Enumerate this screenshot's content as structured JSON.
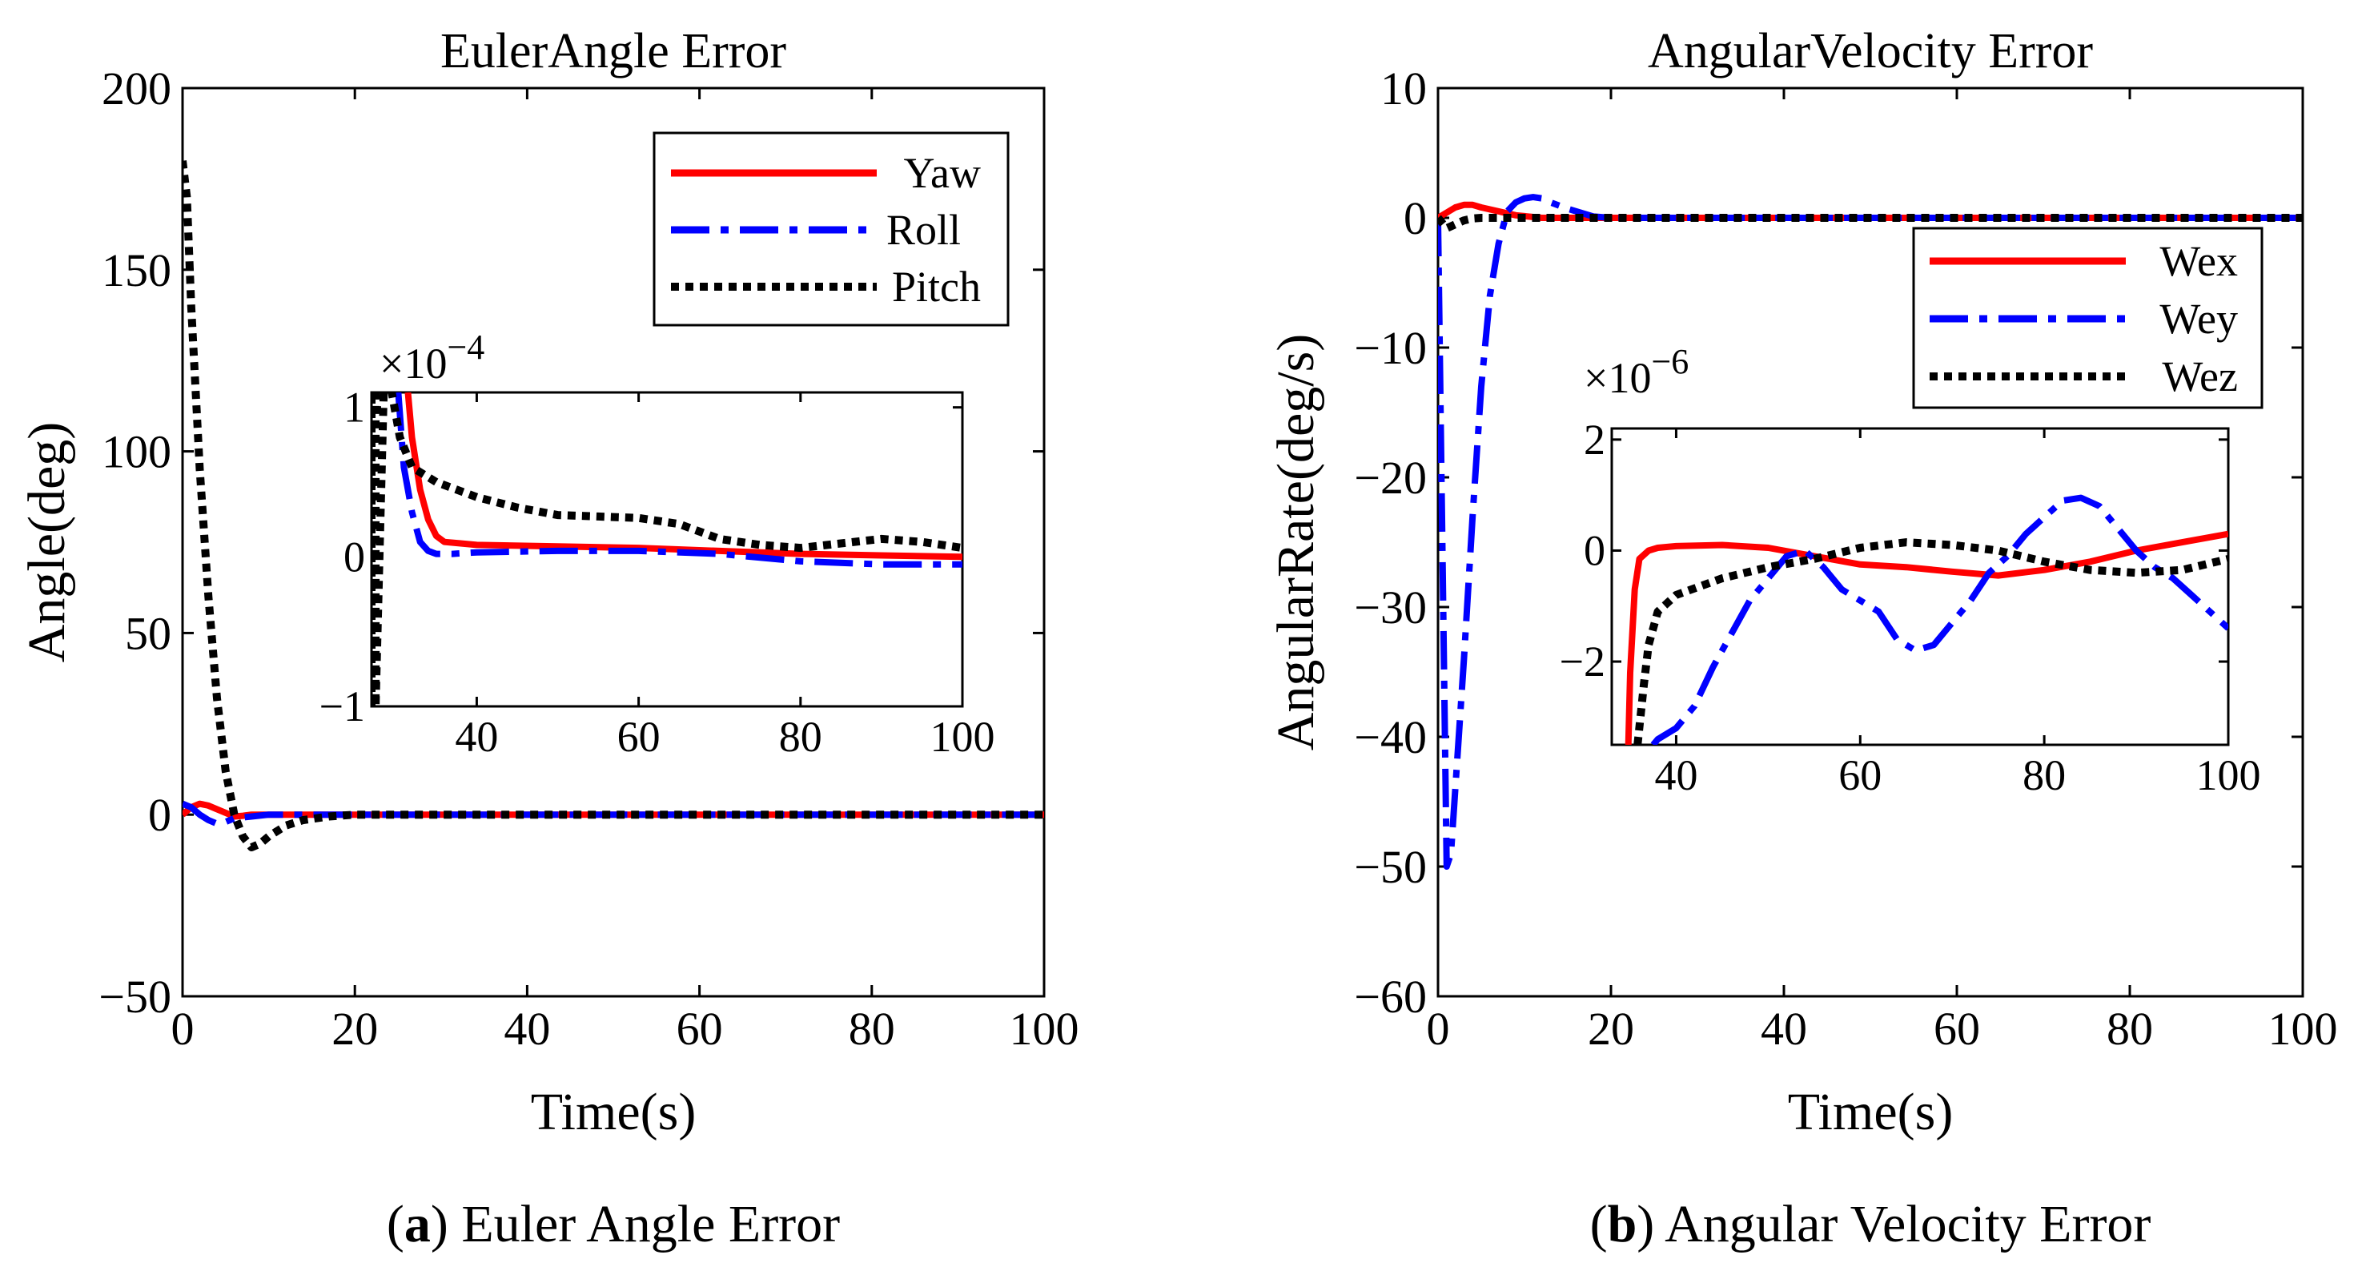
{
  "chart_data": [
    {
      "type": "line",
      "id": "a",
      "title": "EulerAngle  Error",
      "xlabel": "Time(s)",
      "ylabel": "Angle(deg)",
      "xlim": [
        0,
        100
      ],
      "ylim": [
        -50,
        200
      ],
      "xticks": [
        0,
        20,
        40,
        60,
        80,
        100
      ],
      "yticks": [
        -50,
        0,
        50,
        100,
        150,
        200
      ],
      "xtick_labels": [
        "0",
        "20",
        "40",
        "60",
        "80",
        "100"
      ],
      "ytick_labels": [
        "−50",
        "0",
        "50",
        "100",
        "150",
        "200"
      ],
      "legend_position": "top-right",
      "series": [
        {
          "name": "Yaw",
          "color": "#ff0000",
          "style": "solid",
          "x": [
            0,
            1,
            2,
            3,
            4,
            5,
            6,
            7,
            8,
            10,
            15,
            20,
            30,
            50,
            100
          ],
          "y": [
            0,
            2,
            3,
            2.5,
            1.5,
            0.5,
            -0.5,
            -0.3,
            0,
            0,
            0,
            0,
            0,
            0,
            0
          ]
        },
        {
          "name": "Roll",
          "color": "#0000ff",
          "style": "dashdot",
          "x": [
            0,
            1,
            2,
            3,
            4,
            5,
            6,
            8,
            10,
            15,
            20,
            30,
            50,
            100
          ],
          "y": [
            3,
            2,
            0,
            -1.5,
            -2.5,
            -2,
            -1,
            -0.5,
            0,
            0,
            0,
            0,
            0,
            0
          ]
        },
        {
          "name": "Pitch",
          "color": "#000000",
          "style": "dotted",
          "x": [
            0,
            0.5,
            1,
            2,
            3,
            4,
            5,
            6,
            7,
            8,
            9,
            10,
            12,
            14,
            17,
            20,
            25,
            30,
            40,
            100
          ],
          "y": [
            180,
            170,
            140,
            95,
            60,
            32,
            12,
            0,
            -6,
            -9,
            -8,
            -6,
            -3,
            -1.5,
            -0.5,
            0,
            0,
            0,
            0,
            0
          ]
        }
      ],
      "inset": {
        "multiplier": "×10",
        "exponent": "−4",
        "xlim": [
          27,
          100
        ],
        "ylim": [
          -1,
          1.1
        ],
        "xticks": [
          40,
          60,
          80,
          100
        ],
        "yticks": [
          -1,
          0,
          1
        ],
        "xtick_labels": [
          "40",
          "60",
          "80",
          "100"
        ],
        "ytick_labels": [
          "−1",
          "0",
          "1"
        ],
        "series": [
          {
            "name": "Yaw",
            "color": "#ff0000",
            "style": "solid",
            "x": [
              31.5,
              32,
              33,
              34,
              35,
              36,
              38,
              40,
              50,
              60,
              70,
              80,
              90,
              100
            ],
            "y": [
              1.1,
              0.8,
              0.45,
              0.25,
              0.14,
              0.1,
              0.09,
              0.08,
              0.07,
              0.06,
              0.04,
              0.02,
              0.01,
              0.0
            ]
          },
          {
            "name": "Roll",
            "color": "#0000ff",
            "style": "dashdot",
            "x": [
              30.3,
              31,
              32,
              33,
              34,
              35,
              37,
              40,
              50,
              60,
              70,
              80,
              90,
              100
            ],
            "y": [
              1.1,
              0.6,
              0.3,
              0.1,
              0.04,
              0.02,
              0.02,
              0.03,
              0.04,
              0.04,
              0.02,
              -0.03,
              -0.05,
              -0.05
            ]
          },
          {
            "name": "Pitch",
            "color": "#000000",
            "style": "dotted",
            "x": [
              27,
              27,
              27.5,
              27.5,
              28.5,
              29.5,
              30.5,
              32,
              35,
              40,
              45,
              50,
              55,
              60,
              65,
              70,
              75,
              80,
              85,
              90,
              95,
              100
            ],
            "y": [
              -1,
              1.1,
              1.1,
              -1,
              1.1,
              1.1,
              0.8,
              0.6,
              0.5,
              0.4,
              0.33,
              0.28,
              0.27,
              0.26,
              0.22,
              0.12,
              0.08,
              0.06,
              0.09,
              0.12,
              0.1,
              0.06
            ]
          }
        ]
      },
      "caption_label": "a",
      "caption_text": "Euler Angle Error"
    },
    {
      "type": "line",
      "id": "b",
      "title": "AngularVelocity  Error",
      "xlabel": "Time(s)",
      "ylabel": "AngularRate(deg/s)",
      "xlim": [
        0,
        100
      ],
      "ylim": [
        -60,
        10
      ],
      "xticks": [
        0,
        20,
        40,
        60,
        80,
        100
      ],
      "yticks": [
        -60,
        -50,
        -40,
        -30,
        -20,
        -10,
        0,
        10
      ],
      "xtick_labels": [
        "0",
        "20",
        "40",
        "60",
        "80",
        "100"
      ],
      "ytick_labels": [
        "−60",
        "−50",
        "−40",
        "−30",
        "−20",
        "−10",
        "0",
        "10"
      ],
      "legend_position": "top-right",
      "series": [
        {
          "name": "Wex",
          "color": "#ff0000",
          "style": "solid",
          "x": [
            0,
            1,
            2,
            3,
            4,
            5,
            7,
            9,
            12,
            15,
            20,
            100
          ],
          "y": [
            0,
            0.4,
            0.8,
            1.0,
            1.0,
            0.8,
            0.5,
            0.2,
            0.0,
            0,
            0,
            0
          ]
        },
        {
          "name": "Wey",
          "color": "#0000ff",
          "style": "dashdot",
          "x": [
            0,
            0.5,
            1,
            1.5,
            2,
            3,
            4,
            5,
            6,
            7,
            8,
            9,
            10,
            11,
            12,
            13,
            15,
            18,
            20,
            100
          ],
          "y": [
            0,
            -25,
            -50,
            -49,
            -44,
            -34,
            -23,
            -13,
            -6,
            -2,
            0.5,
            1.2,
            1.5,
            1.6,
            1.5,
            1.2,
            0.7,
            0.1,
            0,
            0
          ]
        },
        {
          "name": "Wez",
          "color": "#000000",
          "style": "dotted",
          "x": [
            0,
            1,
            2,
            3,
            4,
            5,
            6,
            8,
            10,
            100
          ],
          "y": [
            0,
            -0.8,
            -0.5,
            -0.2,
            -0.05,
            0,
            0,
            0,
            0,
            0
          ]
        }
      ],
      "inset": {
        "multiplier": "×10",
        "exponent": "−6",
        "xlim": [
          33,
          100
        ],
        "ylim": [
          -3.5,
          2.2
        ],
        "xticks": [
          40,
          60,
          80,
          100
        ],
        "yticks": [
          -2,
          0,
          2
        ],
        "xtick_labels": [
          "40",
          "60",
          "80",
          "100"
        ],
        "ytick_labels": [
          "−2",
          "0",
          "2"
        ],
        "series": [
          {
            "name": "Wex",
            "color": "#ff0000",
            "style": "solid",
            "x": [
              34.8,
              35,
              35.5,
              36,
              37,
              38,
              40,
              45,
              50,
              55,
              60,
              65,
              70,
              75,
              80,
              85,
              90,
              95,
              100
            ],
            "y": [
              -3.5,
              -2.2,
              -0.7,
              -0.15,
              0.0,
              0.05,
              0.08,
              0.1,
              0.05,
              -0.1,
              -0.25,
              -0.3,
              -0.38,
              -0.45,
              -0.35,
              -0.2,
              0.0,
              0.15,
              0.3
            ]
          },
          {
            "name": "Wey",
            "color": "#0000ff",
            "style": "dashdot",
            "x": [
              37.5,
              38,
              40,
              42,
              44,
              46,
              48,
              50,
              52,
              54,
              56,
              58,
              60,
              62,
              64,
              66,
              68,
              70,
              72,
              74,
              76,
              78,
              80,
              82,
              84,
              86,
              88,
              90,
              92,
              94,
              96,
              98,
              100
            ],
            "y": [
              -3.5,
              -3.4,
              -3.2,
              -2.8,
              -2.1,
              -1.5,
              -0.9,
              -0.5,
              -0.1,
              0.0,
              -0.3,
              -0.7,
              -0.9,
              -1.1,
              -1.6,
              -1.8,
              -1.7,
              -1.3,
              -0.9,
              -0.4,
              -0.1,
              0.3,
              0.6,
              0.9,
              0.95,
              0.8,
              0.4,
              0.0,
              -0.3,
              -0.5,
              -0.8,
              -1.1,
              -1.4
            ]
          },
          {
            "name": "Wez",
            "color": "#000000",
            "style": "dotted",
            "x": [
              35.8,
              36.5,
              37,
              38,
              40,
              45,
              50,
              55,
              60,
              65,
              70,
              75,
              80,
              85,
              90,
              95,
              100
            ],
            "y": [
              -3.5,
              -2.4,
              -1.7,
              -1.1,
              -0.8,
              -0.5,
              -0.3,
              -0.15,
              0.05,
              0.15,
              0.1,
              0.0,
              -0.2,
              -0.35,
              -0.4,
              -0.35,
              -0.15
            ]
          }
        ]
      },
      "caption_label": "b",
      "caption_text": "Angular Velocity Error"
    }
  ]
}
